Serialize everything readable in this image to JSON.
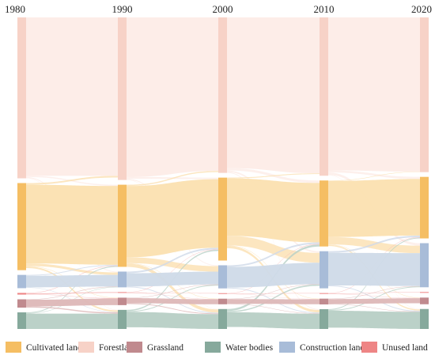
{
  "chart_data": {
    "type": "sankey",
    "title": "",
    "years": [
      "1980",
      "1990",
      "2000",
      "2010",
      "2020"
    ],
    "categories": [
      {
        "name": "Cultivated land",
        "color": "#F5BE63",
        "flow_color": "#FBE0B0"
      },
      {
        "name": "Forestland",
        "color": "#F7D2C7",
        "flow_color": "#FDECE7"
      },
      {
        "name": "Grassland",
        "color": "#C08A8E",
        "flow_color": "#DDB7B7"
      },
      {
        "name": "Water bodies",
        "color": "#86A99C",
        "flow_color": "#B7CFC5"
      },
      {
        "name": "Construction land",
        "color": "#A8BCD8",
        "flow_color": "#CFDAE8"
      },
      {
        "name": "Unused land",
        "color": "#EE8585",
        "flow_color": "#F6B9B9"
      }
    ],
    "node_order": [
      "Forestland",
      "Cultivated land",
      "Construction land",
      "Unused land",
      "Grassland",
      "Water bodies"
    ],
    "stocks_relative": {
      "1980": {
        "Forestland": 194,
        "Cultivated land": 105,
        "Construction land": 16,
        "Unused land": 2,
        "Grassland": 10,
        "Water bodies": 20
      },
      "1990": {
        "Forestland": 196,
        "Cultivated land": 99,
        "Construction land": 19,
        "Unused land": 1,
        "Grassland": 9,
        "Water bodies": 23
      },
      "2000": {
        "Forestland": 195,
        "Cultivated land": 104,
        "Construction land": 29,
        "Unused land": 1,
        "Grassland": 7,
        "Water bodies": 25
      },
      "2010": {
        "Forestland": 192,
        "Cultivated land": 80,
        "Construction land": 45,
        "Unused land": 1,
        "Grassland": 7,
        "Water bodies": 24
      },
      "2020": {
        "Forestland": 186,
        "Cultivated land": 74,
        "Construction land": 53,
        "Unused land": 1,
        "Grassland": 8,
        "Water bodies": 24
      }
    },
    "flows": [
      {
        "from": "Forestland",
        "to": "Cultivated land",
        "values": [
          1.5,
          2,
          3,
          2.5
        ]
      },
      {
        "from": "Forestland",
        "to": "Construction land",
        "values": [
          1,
          1,
          2,
          3
        ]
      },
      {
        "from": "Forestland",
        "to": "Water bodies",
        "values": [
          0.5,
          0.5,
          1,
          0.5
        ]
      },
      {
        "from": "Cultivated land",
        "to": "Forestland",
        "values": [
          2,
          1.5,
          1,
          0.5
        ]
      },
      {
        "from": "Cultivated land",
        "to": "Construction land",
        "values": [
          3,
          7,
          12,
          9
        ]
      },
      {
        "from": "Cultivated land",
        "to": "Water bodies",
        "values": [
          2,
          4,
          3,
          1.5
        ]
      },
      {
        "from": "Cultivated land",
        "to": "Grassland",
        "values": [
          0.5,
          0.5,
          0.5,
          0.5
        ]
      },
      {
        "from": "Construction land",
        "to": "Cultivated land",
        "values": [
          1,
          2,
          2,
          2
        ]
      },
      {
        "from": "Construction land",
        "to": "Water bodies",
        "values": [
          0.5,
          1,
          1,
          1
        ]
      },
      {
        "from": "Water bodies",
        "to": "Cultivated land",
        "values": [
          1,
          1.5,
          2.5,
          1
        ]
      },
      {
        "from": "Water bodies",
        "to": "Construction land",
        "values": [
          0.5,
          1,
          1.5,
          1
        ]
      },
      {
        "from": "Grassland",
        "to": "Water bodies",
        "values": [
          1.5,
          1,
          0.5,
          0.5
        ]
      },
      {
        "from": "Grassland",
        "to": "Construction land",
        "values": [
          0.5,
          0.5,
          0.5,
          0.5
        ]
      },
      {
        "from": "Unused land",
        "to": "Cultivated land",
        "values": [
          0.5,
          0.5,
          0.5,
          0.5
        ]
      },
      {
        "from": "Unused land",
        "to": "Grassland",
        "values": [
          0.5,
          0.3,
          0.3,
          0.3
        ]
      }
    ],
    "legend_position": "bottom"
  }
}
